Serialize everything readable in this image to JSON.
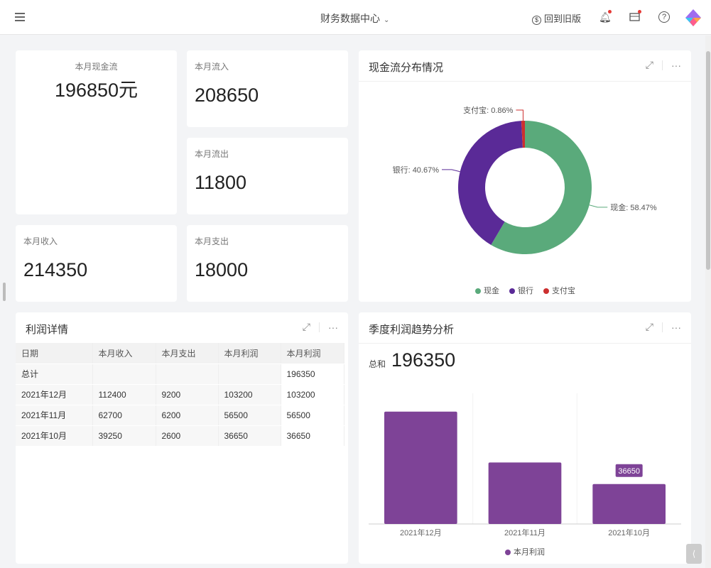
{
  "header": {
    "title": "财务数据中心",
    "back_label": "回到旧版",
    "icons": [
      "menu-icon",
      "bell-icon",
      "briefcase-icon",
      "help-icon",
      "logo-icon"
    ]
  },
  "kpis": {
    "cashflow": {
      "label": "本月现金流",
      "value": "196850元"
    },
    "inflow": {
      "label": "本月流入",
      "value": "208650"
    },
    "outflow": {
      "label": "本月流出",
      "value": "11800"
    },
    "income": {
      "label": "本月收入",
      "value": "214350"
    },
    "expense": {
      "label": "本月支出",
      "value": "18000"
    }
  },
  "pie_card": {
    "title": "现金流分布情况"
  },
  "profit_card": {
    "title": "利润详情",
    "columns": [
      "日期",
      "本月收入",
      "本月支出",
      "本月利润",
      "本月利润"
    ],
    "rows": [
      [
        "总计",
        "",
        "",
        "",
        "196350"
      ],
      [
        "2021年12月",
        "112400",
        "9200",
        "103200",
        "103200"
      ],
      [
        "2021年11月",
        "62700",
        "6200",
        "56500",
        "56500"
      ],
      [
        "2021年10月",
        "39250",
        "2600",
        "36650",
        "36650"
      ]
    ]
  },
  "trend_card": {
    "title": "季度利润趋势分析",
    "sum_label": "总和",
    "sum_value": "196350"
  },
  "chart_data": [
    {
      "type": "pie",
      "donut": true,
      "slices": [
        {
          "name": "现金",
          "value": 58.47,
          "label": "现金: 58.47%",
          "color": "#5aaa7b"
        },
        {
          "name": "银行",
          "value": 40.67,
          "label": "银行: 40.67%",
          "color": "#5a2a97"
        },
        {
          "name": "支付宝",
          "value": 0.86,
          "label": "支付宝: 0.86%",
          "color": "#cc2f2f"
        }
      ],
      "legend": "bottom"
    },
    {
      "type": "bar",
      "categories": [
        "2021年12月",
        "2021年11月",
        "2021年10月"
      ],
      "series": [
        {
          "name": "本月利润",
          "values": [
            103200,
            56500,
            36650
          ],
          "color": "#7e4397"
        }
      ],
      "ylim": [
        0,
        120000
      ],
      "highlight_label": "36650",
      "legend": "bottom"
    }
  ]
}
